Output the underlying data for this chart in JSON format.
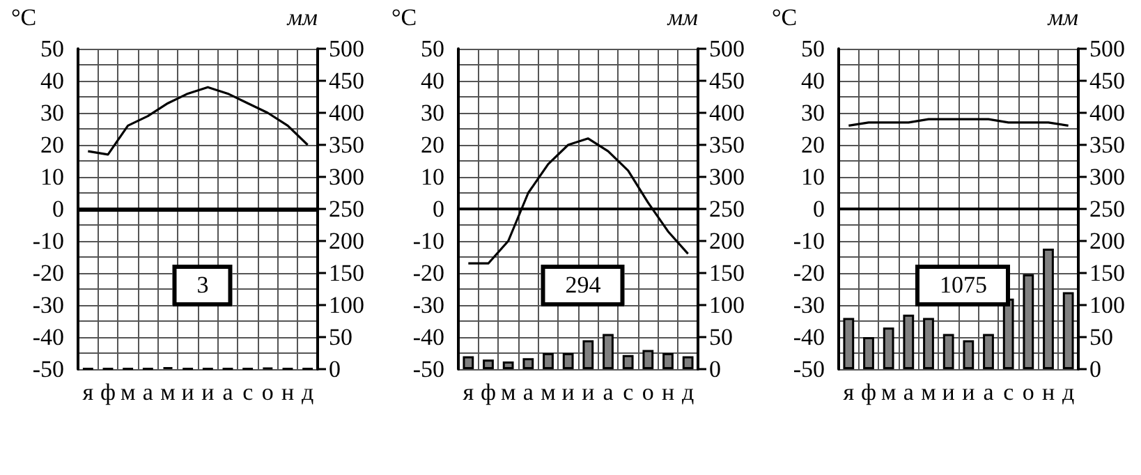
{
  "chart_data": [
    {
      "type": "bar",
      "categories": [
        "я",
        "ф",
        "м",
        "а",
        "м",
        "и",
        "и",
        "а",
        "с",
        "о",
        "н",
        "д"
      ],
      "ylabel": "°C",
      "y2label": "мм",
      "ylim": [
        -50,
        50
      ],
      "yticks": [
        -50,
        -40,
        -30,
        -20,
        -10,
        0,
        10,
        20,
        30,
        40,
        50
      ],
      "y2lim": [
        0,
        500
      ],
      "y2ticks": [
        0,
        50,
        100,
        150,
        200,
        250,
        300,
        350,
        400,
        450,
        500
      ],
      "grid": true,
      "marker": "none",
      "annotations": [
        "3"
      ],
      "ref_lines": [
        {
          "axis": "y",
          "value": 0,
          "color": "#000000"
        }
      ],
      "series": [
        {
          "type": "line",
          "color": "#000000",
          "values": [
            18,
            17,
            26,
            29,
            33,
            36,
            38,
            36,
            33,
            30,
            26,
            20
          ]
        },
        {
          "axis": "y2",
          "color": "#000000",
          "values": [
            1,
            1,
            1,
            1,
            3,
            1,
            1,
            1,
            1,
            2,
            1,
            1
          ]
        }
      ]
    },
    {
      "type": "bar",
      "categories": [
        "я",
        "ф",
        "м",
        "а",
        "м",
        "и",
        "и",
        "а",
        "с",
        "о",
        "н",
        "д"
      ],
      "ylabel": "°C",
      "y2label": "мм",
      "ylim": [
        -50,
        50
      ],
      "yticks": [
        -50,
        -40,
        -30,
        -20,
        -10,
        0,
        10,
        20,
        30,
        40,
        50
      ],
      "y2lim": [
        0,
        500
      ],
      "y2ticks": [
        0,
        50,
        100,
        150,
        200,
        250,
        300,
        350,
        400,
        450,
        500
      ],
      "grid": true,
      "marker": "none",
      "annotations": [
        "294"
      ],
      "series": [
        {
          "type": "line",
          "color": "#000000",
          "values": [
            -17,
            -17,
            -10,
            5,
            14,
            20,
            22,
            18,
            12,
            2,
            -7,
            -14
          ]
        },
        {
          "axis": "y2",
          "color": "#808080",
          "values": [
            20,
            15,
            12,
            17,
            25,
            25,
            45,
            55,
            22,
            30,
            25,
            20
          ]
        }
      ]
    },
    {
      "type": "bar",
      "categories": [
        "я",
        "ф",
        "м",
        "а",
        "м",
        "и",
        "и",
        "а",
        "с",
        "о",
        "н",
        "д"
      ],
      "ylabel": "°C",
      "y2label": "мм",
      "ylim": [
        -50,
        50
      ],
      "yticks": [
        -50,
        -40,
        -30,
        -20,
        -10,
        0,
        10,
        20,
        30,
        40,
        50
      ],
      "y2lim": [
        0,
        500
      ],
      "y2ticks": [
        0,
        50,
        100,
        150,
        200,
        250,
        300,
        350,
        400,
        450,
        500
      ],
      "grid": true,
      "marker": "none",
      "annotations": [
        "1075"
      ],
      "series": [
        {
          "type": "line",
          "color": "#000000",
          "values": [
            26,
            27,
            27,
            27,
            28,
            28,
            28,
            28,
            27,
            27,
            27,
            26
          ]
        },
        {
          "axis": "y2",
          "color": "#808080",
          "values": [
            80,
            50,
            65,
            85,
            80,
            55,
            45,
            55,
            110,
            148,
            188,
            120
          ]
        }
      ]
    }
  ]
}
